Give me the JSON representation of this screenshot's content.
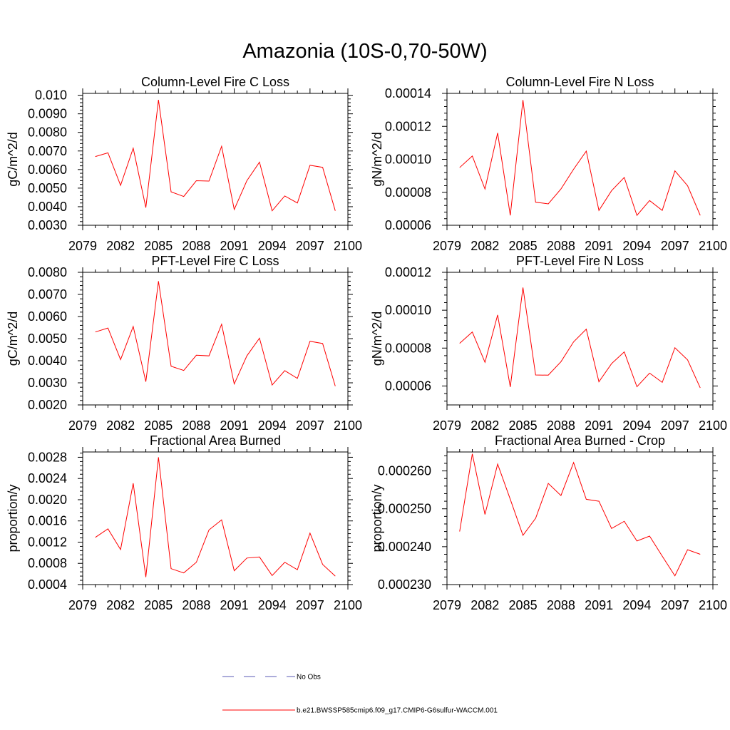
{
  "figure": {
    "title": "Amazonia (10S-0,70-50W)"
  },
  "legend": {
    "entries": [
      {
        "label": "No Obs",
        "color": "#5a5ab4",
        "dash": true
      },
      {
        "label": "b.e21.BWSSP585cmip6.f09_g17.CMIP6-G6sulfur-WACCM.001",
        "color": "#ff0000",
        "dash": false
      }
    ]
  },
  "chart_data": [
    {
      "type": "line",
      "title": "Column-Level Fire C Loss",
      "ylabel": "gC/m^2/d",
      "xlim": [
        2079,
        2100
      ],
      "ylim": [
        0.003,
        0.0101
      ],
      "xticks": [
        2079,
        2082,
        2085,
        2088,
        2091,
        2094,
        2097,
        2100
      ],
      "yticks": [
        0.003,
        0.004,
        0.005,
        0.006,
        0.007,
        0.008,
        0.009,
        0.01
      ],
      "ytick_labels": [
        "0.0030",
        "0.0040",
        "0.0050",
        "0.0060",
        "0.0070",
        "0.0080",
        "0.0090",
        "0.010"
      ],
      "grid": false,
      "x": [
        2080,
        2081,
        2082,
        2083,
        2084,
        2085,
        2086,
        2087,
        2088,
        2089,
        2090,
        2091,
        2092,
        2093,
        2094,
        2095,
        2096,
        2097,
        2098,
        2099
      ],
      "series": [
        {
          "name": "b.e21.BWSSP585cmip6.f09_g17.CMIP6-G6sulfur-WACCM.001",
          "color": "#ff0000",
          "values": [
            0.0067,
            0.0069,
            0.00515,
            0.00715,
            0.00395,
            0.00975,
            0.0048,
            0.00455,
            0.0054,
            0.00538,
            0.00725,
            0.00385,
            0.0054,
            0.0064,
            0.00378,
            0.00458,
            0.0042,
            0.00623,
            0.00612,
            0.00378
          ]
        }
      ]
    },
    {
      "type": "line",
      "title": "Column-Level Fire N Loss",
      "ylabel": "gN/m^2/d",
      "xlim": [
        2079,
        2100
      ],
      "ylim": [
        6e-05,
        0.00014
      ],
      "xticks": [
        2079,
        2082,
        2085,
        2088,
        2091,
        2094,
        2097,
        2100
      ],
      "yticks": [
        6e-05,
        8e-05,
        0.0001,
        0.00012,
        0.00014
      ],
      "ytick_labels": [
        "0.00006",
        "0.00008",
        "0.00010",
        "0.00012",
        "0.00014"
      ],
      "grid": false,
      "x": [
        2080,
        2081,
        2082,
        2083,
        2084,
        2085,
        2086,
        2087,
        2088,
        2089,
        2090,
        2091,
        2092,
        2093,
        2094,
        2095,
        2096,
        2097,
        2098,
        2099
      ],
      "series": [
        {
          "name": "b.e21.BWSSP585cmip6.f09_g17.CMIP6-G6sulfur-WACCM.001",
          "color": "#ff0000",
          "values": [
            9.5e-05,
            0.000102,
            8.2e-05,
            0.000116,
            6.6e-05,
            0.000136,
            7.4e-05,
            7.3e-05,
            8.2e-05,
            9.4e-05,
            0.000105,
            6.9e-05,
            8.1e-05,
            8.9e-05,
            6.6e-05,
            7.5e-05,
            6.9e-05,
            9.3e-05,
            8.4e-05,
            6.6e-05
          ]
        }
      ]
    },
    {
      "type": "line",
      "title": "PFT-Level Fire C Loss",
      "ylabel": "gC/m^2/d",
      "xlim": [
        2079,
        2100
      ],
      "ylim": [
        0.002,
        0.008
      ],
      "xticks": [
        2079,
        2082,
        2085,
        2088,
        2091,
        2094,
        2097,
        2100
      ],
      "yticks": [
        0.002,
        0.003,
        0.004,
        0.005,
        0.006,
        0.007,
        0.008
      ],
      "ytick_labels": [
        "0.0020",
        "0.0030",
        "0.0040",
        "0.0050",
        "0.0060",
        "0.0070",
        "0.0080"
      ],
      "grid": false,
      "x": [
        2080,
        2081,
        2082,
        2083,
        2084,
        2085,
        2086,
        2087,
        2088,
        2089,
        2090,
        2091,
        2092,
        2093,
        2094,
        2095,
        2096,
        2097,
        2098,
        2099
      ],
      "series": [
        {
          "name": "b.e21.BWSSP585cmip6.f09_g17.CMIP6-G6sulfur-WACCM.001",
          "color": "#ff0000",
          "values": [
            0.0053,
            0.00548,
            0.00405,
            0.00555,
            0.00305,
            0.0076,
            0.00375,
            0.00356,
            0.00425,
            0.00422,
            0.00565,
            0.00295,
            0.00422,
            0.00502,
            0.0029,
            0.00355,
            0.0032,
            0.00488,
            0.00478,
            0.00285
          ]
        }
      ]
    },
    {
      "type": "line",
      "title": "PFT-Level Fire N Loss",
      "ylabel": "gN/m^2/d",
      "xlim": [
        2079,
        2100
      ],
      "ylim": [
        5e-05,
        0.00012
      ],
      "xticks": [
        2079,
        2082,
        2085,
        2088,
        2091,
        2094,
        2097,
        2100
      ],
      "yticks": [
        6e-05,
        8e-05,
        0.0001,
        0.00012
      ],
      "ytick_labels": [
        "0.00006",
        "0.00008",
        "0.00010",
        "0.00012"
      ],
      "grid": false,
      "x": [
        2080,
        2081,
        2082,
        2083,
        2084,
        2085,
        2086,
        2087,
        2088,
        2089,
        2090,
        2091,
        2092,
        2093,
        2094,
        2095,
        2096,
        2097,
        2098,
        2099
      ],
      "series": [
        {
          "name": "b.e21.BWSSP585cmip6.f09_g17.CMIP6-G6sulfur-WACCM.001",
          "color": "#ff0000",
          "values": [
            8.25e-05,
            8.85e-05,
            7.25e-05,
            9.75e-05,
            5.95e-05,
            0.000112,
            6.58e-05,
            6.57e-05,
            7.28e-05,
            8.33e-05,
            9e-05,
            6.22e-05,
            7.18e-05,
            7.8e-05,
            5.96e-05,
            6.68e-05,
            6.19e-05,
            8.02e-05,
            7.38e-05,
            5.9e-05
          ]
        }
      ]
    },
    {
      "type": "line",
      "title": "Fractional Area Burned",
      "ylabel": "proportion/y",
      "xlim": [
        2079,
        2100
      ],
      "ylim": [
        0.0004,
        0.0029
      ],
      "xticks": [
        2079,
        2082,
        2085,
        2088,
        2091,
        2094,
        2097,
        2100
      ],
      "yticks": [
        0.0004,
        0.0008,
        0.0012,
        0.0016,
        0.002,
        0.0024,
        0.0028
      ],
      "ytick_labels": [
        "0.0004",
        "0.0008",
        "0.0012",
        "0.0016",
        "0.0020",
        "0.0024",
        "0.0028"
      ],
      "grid": false,
      "x": [
        2080,
        2081,
        2082,
        2083,
        2084,
        2085,
        2086,
        2087,
        2088,
        2089,
        2090,
        2091,
        2092,
        2093,
        2094,
        2095,
        2096,
        2097,
        2098,
        2099
      ],
      "series": [
        {
          "name": "b.e21.BWSSP585cmip6.f09_g17.CMIP6-G6sulfur-WACCM.001",
          "color": "#ff0000",
          "values": [
            0.00129,
            0.00145,
            0.00106,
            0.00231,
            0.00054,
            0.0028,
            0.0007,
            0.00062,
            0.00082,
            0.00143,
            0.00162,
            0.00066,
            0.0009,
            0.00092,
            0.00057,
            0.00082,
            0.00068,
            0.00137,
            0.00078,
            0.00056
          ]
        }
      ]
    },
    {
      "type": "line",
      "title": "Fractional Area Burned - Crop",
      "ylabel": "proportion/y",
      "xlim": [
        2079,
        2100
      ],
      "ylim": [
        0.00023,
        0.000265
      ],
      "xticks": [
        2079,
        2082,
        2085,
        2088,
        2091,
        2094,
        2097,
        2100
      ],
      "yticks": [
        0.00023,
        0.00024,
        0.00025,
        0.00026
      ],
      "ytick_labels": [
        "0.000230",
        "0.000240",
        "0.000250",
        "0.000260"
      ],
      "grid": false,
      "x": [
        2080,
        2081,
        2082,
        2083,
        2084,
        2085,
        2086,
        2087,
        2088,
        2089,
        2090,
        2091,
        2092,
        2093,
        2094,
        2095,
        2096,
        2097,
        2098,
        2099
      ],
      "series": [
        {
          "name": "b.e21.BWSSP585cmip6.f09_g17.CMIP6-G6sulfur-WACCM.001",
          "color": "#ff0000",
          "values": [
            0.000244,
            0.0002645,
            0.0002485,
            0.0002618,
            0.0002525,
            0.000243,
            0.0002475,
            0.0002567,
            0.0002535,
            0.0002622,
            0.0002525,
            0.000252,
            0.0002448,
            0.0002467,
            0.0002415,
            0.0002428,
            0.0002375,
            0.0002323,
            0.0002392,
            0.000238
          ]
        }
      ]
    }
  ]
}
